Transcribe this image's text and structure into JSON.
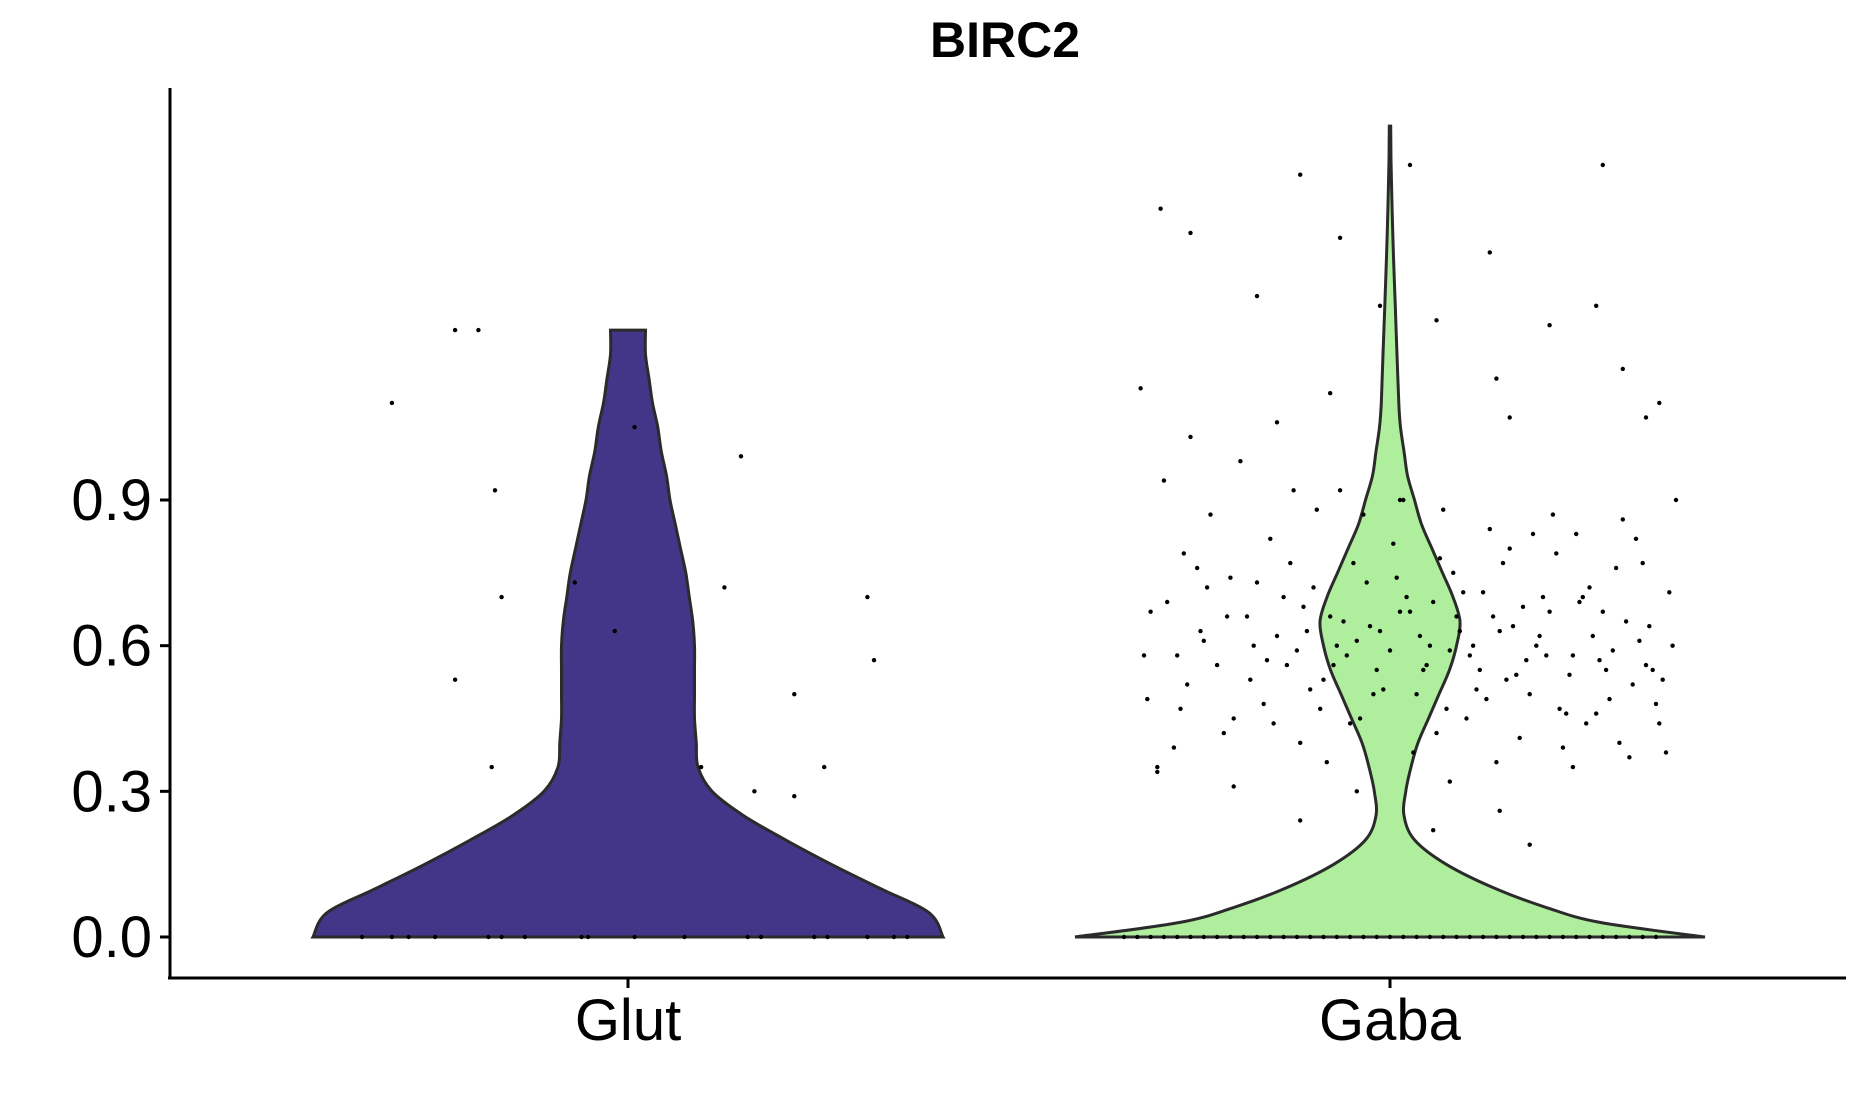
{
  "chart_data": {
    "type": "violin",
    "title": "BIRC2",
    "xlabel": "",
    "ylabel": "",
    "categories": [
      "Glut",
      "Gaba"
    ],
    "ylim": [
      -0.08,
      1.75
    ],
    "yticks": [
      0.0,
      0.3,
      0.6,
      0.9
    ],
    "ytick_labels": [
      "0.0",
      "0.3",
      "0.6",
      "0.9"
    ],
    "legend": "none",
    "grid": false,
    "colors": {
      "Glut": "#433689",
      "Gaba": "#aeee9c",
      "outline": "#2b2b2b",
      "points": "#000000"
    },
    "violins": [
      {
        "name": "Glut",
        "max": 1.25,
        "profile": [
          [
            0.0,
            0.9
          ],
          [
            0.05,
            0.86
          ],
          [
            0.1,
            0.72
          ],
          [
            0.15,
            0.58
          ],
          [
            0.2,
            0.45
          ],
          [
            0.25,
            0.33
          ],
          [
            0.3,
            0.24
          ],
          [
            0.35,
            0.2
          ],
          [
            0.4,
            0.195
          ],
          [
            0.45,
            0.19
          ],
          [
            0.5,
            0.19
          ],
          [
            0.55,
            0.19
          ],
          [
            0.6,
            0.19
          ],
          [
            0.65,
            0.185
          ],
          [
            0.7,
            0.175
          ],
          [
            0.75,
            0.165
          ],
          [
            0.8,
            0.15
          ],
          [
            0.85,
            0.135
          ],
          [
            0.9,
            0.12
          ],
          [
            0.95,
            0.11
          ],
          [
            1.0,
            0.095
          ],
          [
            1.05,
            0.085
          ],
          [
            1.1,
            0.07
          ],
          [
            1.15,
            0.06
          ],
          [
            1.2,
            0.05
          ],
          [
            1.25,
            0.05
          ]
        ],
        "points": [
          [
            -0.8,
            0.0
          ],
          [
            -0.71,
            0.0
          ],
          [
            -0.66,
            0.0
          ],
          [
            -0.58,
            0.0
          ],
          [
            -0.42,
            0.0
          ],
          [
            -0.38,
            0.0
          ],
          [
            -0.31,
            0.0
          ],
          [
            -0.14,
            0.0
          ],
          [
            -0.12,
            0.0
          ],
          [
            0.02,
            0.0
          ],
          [
            0.17,
            0.0
          ],
          [
            0.36,
            0.0
          ],
          [
            0.4,
            0.0
          ],
          [
            0.56,
            0.0
          ],
          [
            0.6,
            0.0
          ],
          [
            0.72,
            0.0
          ],
          [
            0.8,
            0.0
          ],
          [
            0.84,
            0.0
          ],
          [
            -0.52,
            1.25
          ],
          [
            -0.45,
            1.25
          ],
          [
            -0.71,
            1.1
          ],
          [
            0.02,
            1.05
          ],
          [
            0.34,
            0.99
          ],
          [
            -0.4,
            0.92
          ],
          [
            -0.16,
            0.73
          ],
          [
            0.29,
            0.72
          ],
          [
            -0.38,
            0.7
          ],
          [
            0.72,
            0.7
          ],
          [
            -0.04,
            0.63
          ],
          [
            0.74,
            0.57
          ],
          [
            -0.52,
            0.53
          ],
          [
            0.5,
            0.5
          ],
          [
            -0.41,
            0.35
          ],
          [
            0.22,
            0.35
          ],
          [
            0.59,
            0.35
          ],
          [
            0.38,
            0.3
          ],
          [
            0.5,
            0.29
          ]
        ]
      },
      {
        "name": "Gaba",
        "max": 1.67,
        "profile": [
          [
            0.0,
            0.9
          ],
          [
            0.03,
            0.6
          ],
          [
            0.06,
            0.45
          ],
          [
            0.1,
            0.3
          ],
          [
            0.15,
            0.16
          ],
          [
            0.2,
            0.07
          ],
          [
            0.25,
            0.04
          ],
          [
            0.3,
            0.045
          ],
          [
            0.35,
            0.06
          ],
          [
            0.4,
            0.08
          ],
          [
            0.45,
            0.11
          ],
          [
            0.5,
            0.14
          ],
          [
            0.55,
            0.17
          ],
          [
            0.6,
            0.19
          ],
          [
            0.65,
            0.2
          ],
          [
            0.7,
            0.18
          ],
          [
            0.75,
            0.15
          ],
          [
            0.8,
            0.12
          ],
          [
            0.85,
            0.09
          ],
          [
            0.9,
            0.07
          ],
          [
            0.95,
            0.05
          ],
          [
            1.0,
            0.04
          ],
          [
            1.05,
            0.03
          ],
          [
            1.1,
            0.025
          ],
          [
            1.2,
            0.02
          ],
          [
            1.3,
            0.015
          ],
          [
            1.4,
            0.01
          ],
          [
            1.5,
            0.006
          ],
          [
            1.6,
            0.003
          ],
          [
            1.67,
            0.002
          ]
        ],
        "points": [
          [
            -0.75,
            1.13
          ],
          [
            -0.68,
            0.94
          ],
          [
            -0.62,
            0.79
          ],
          [
            -0.55,
            0.72
          ],
          [
            -0.49,
            0.66
          ],
          [
            -0.41,
            0.6
          ],
          [
            -0.36,
            0.82
          ],
          [
            -0.31,
            0.56
          ],
          [
            -0.26,
            0.68
          ],
          [
            -0.21,
            0.47
          ],
          [
            -0.16,
            0.6
          ],
          [
            -0.11,
            0.77
          ],
          [
            -0.06,
            0.64
          ],
          [
            0.0,
            0.59
          ],
          [
            0.05,
            0.7
          ],
          [
            0.1,
            0.55
          ],
          [
            0.15,
            0.78
          ],
          [
            0.2,
            0.66
          ],
          [
            0.25,
            0.6
          ],
          [
            0.3,
            0.84
          ],
          [
            0.35,
            0.53
          ],
          [
            0.4,
            0.68
          ],
          [
            0.45,
            0.62
          ],
          [
            0.5,
            0.79
          ],
          [
            0.55,
            0.58
          ],
          [
            0.6,
            0.72
          ],
          [
            0.65,
            0.55
          ],
          [
            0.7,
            0.86
          ],
          [
            0.75,
            0.61
          ],
          [
            0.8,
            0.48
          ],
          [
            -0.74,
            0.58
          ],
          [
            -0.67,
            0.69
          ],
          [
            -0.61,
            0.52
          ],
          [
            -0.54,
            0.87
          ],
          [
            -0.47,
            0.45
          ],
          [
            -0.4,
            0.73
          ],
          [
            -0.34,
            0.62
          ],
          [
            -0.29,
            0.92
          ],
          [
            -0.24,
            0.51
          ],
          [
            -0.18,
            0.66
          ],
          [
            -0.13,
            0.58
          ],
          [
            -0.08,
            0.87
          ],
          [
            -0.03,
            0.63
          ],
          [
            0.02,
            0.74
          ],
          [
            0.08,
            0.5
          ],
          [
            0.13,
            0.69
          ],
          [
            0.18,
            0.59
          ],
          [
            0.23,
            0.45
          ],
          [
            0.28,
            0.71
          ],
          [
            0.33,
            0.63
          ],
          [
            0.38,
            0.54
          ],
          [
            0.43,
            0.83
          ],
          [
            0.48,
            0.67
          ],
          [
            0.53,
            0.46
          ],
          [
            0.58,
            0.7
          ],
          [
            0.63,
            0.57
          ],
          [
            0.68,
            0.76
          ],
          [
            0.73,
            0.52
          ],
          [
            0.78,
            0.64
          ],
          [
            0.83,
            0.38
          ],
          [
            -0.73,
            0.49
          ],
          [
            -0.65,
            0.39
          ],
          [
            -0.58,
            0.76
          ],
          [
            -0.52,
            0.56
          ],
          [
            -0.45,
            0.98
          ],
          [
            -0.38,
            0.48
          ],
          [
            -0.32,
            0.7
          ],
          [
            -0.27,
            0.4
          ],
          [
            -0.22,
            0.88
          ],
          [
            -0.17,
            0.56
          ],
          [
            -0.12,
            0.44
          ],
          [
            -0.07,
            0.73
          ],
          [
            -0.02,
            0.51
          ],
          [
            0.04,
            0.9
          ],
          [
            0.09,
            0.62
          ],
          [
            0.14,
            0.42
          ],
          [
            0.19,
            0.75
          ],
          [
            0.24,
            0.58
          ],
          [
            0.29,
            0.49
          ],
          [
            0.34,
            0.77
          ],
          [
            0.39,
            0.41
          ],
          [
            0.44,
            0.6
          ],
          [
            0.49,
            0.87
          ],
          [
            0.54,
            0.54
          ],
          [
            0.59,
            0.44
          ],
          [
            0.64,
            0.67
          ],
          [
            0.69,
            0.4
          ],
          [
            0.74,
            0.82
          ],
          [
            0.79,
            0.55
          ],
          [
            0.84,
            0.71
          ],
          [
            -0.72,
            0.67
          ],
          [
            -0.64,
            0.58
          ],
          [
            -0.57,
            0.63
          ],
          [
            -0.5,
            0.42
          ],
          [
            -0.43,
            0.66
          ],
          [
            -0.37,
            0.57
          ],
          [
            -0.3,
            0.77
          ],
          [
            -0.25,
            0.63
          ],
          [
            -0.2,
            0.53
          ],
          [
            -0.15,
            0.92
          ],
          [
            -0.1,
            0.61
          ],
          [
            -0.05,
            0.5
          ],
          [
            0.01,
            0.81
          ],
          [
            0.06,
            0.67
          ],
          [
            0.11,
            0.56
          ],
          [
            0.16,
            0.88
          ],
          [
            0.21,
            0.63
          ],
          [
            0.26,
            0.51
          ],
          [
            0.31,
            0.66
          ],
          [
            0.36,
            0.8
          ],
          [
            0.41,
            0.57
          ],
          [
            0.46,
            0.7
          ],
          [
            0.51,
            0.47
          ],
          [
            0.56,
            0.83
          ],
          [
            0.61,
            0.62
          ],
          [
            0.66,
            0.49
          ],
          [
            0.71,
            0.65
          ],
          [
            0.76,
            0.77
          ],
          [
            0.81,
            0.44
          ],
          [
            0.85,
            0.6
          ],
          [
            -0.7,
            0.34
          ],
          [
            -0.63,
            0.47
          ],
          [
            -0.56,
            0.61
          ],
          [
            -0.48,
            0.74
          ],
          [
            -0.42,
            0.53
          ],
          [
            -0.35,
            0.44
          ],
          [
            -0.28,
            0.59
          ],
          [
            -0.23,
            0.72
          ],
          [
            -0.19,
            0.36
          ],
          [
            -0.14,
            0.65
          ],
          [
            -0.09,
            0.45
          ],
          [
            -0.04,
            0.55
          ],
          [
            0.03,
            0.67
          ],
          [
            0.07,
            0.38
          ],
          [
            0.12,
            0.6
          ],
          [
            0.17,
            0.47
          ],
          [
            0.22,
            0.71
          ],
          [
            0.27,
            0.55
          ],
          [
            0.32,
            0.36
          ],
          [
            0.37,
            0.64
          ],
          [
            0.42,
            0.5
          ],
          [
            0.47,
            0.58
          ],
          [
            0.52,
            0.39
          ],
          [
            0.57,
            0.69
          ],
          [
            0.62,
            0.46
          ],
          [
            0.67,
            0.59
          ],
          [
            0.72,
            0.37
          ],
          [
            0.77,
            0.56
          ],
          [
            0.82,
            0.53
          ],
          [
            0.86,
            0.9
          ],
          [
            -0.69,
            1.5
          ],
          [
            -0.6,
            1.45
          ],
          [
            -0.4,
            1.32
          ],
          [
            -0.27,
            1.57
          ],
          [
            -0.15,
            1.44
          ],
          [
            -0.03,
            1.3
          ],
          [
            0.06,
            1.59
          ],
          [
            0.14,
            1.27
          ],
          [
            0.3,
            1.41
          ],
          [
            0.32,
            1.15
          ],
          [
            0.48,
            1.26
          ],
          [
            0.64,
            1.59
          ],
          [
            0.7,
            1.17
          ],
          [
            0.62,
            1.3
          ],
          [
            0.77,
            1.07
          ],
          [
            0.36,
            1.07
          ],
          [
            -0.6,
            1.03
          ],
          [
            -0.34,
            1.06
          ],
          [
            -0.18,
            1.12
          ],
          [
            0.03,
            0.9
          ],
          [
            0.13,
            0.22
          ],
          [
            0.42,
            0.19
          ],
          [
            0.18,
            0.32
          ],
          [
            -0.1,
            0.3
          ],
          [
            -0.27,
            0.24
          ],
          [
            -0.47,
            0.31
          ],
          [
            0.33,
            0.26
          ],
          [
            0.55,
            0.35
          ],
          [
            -0.7,
            0.35
          ],
          [
            0.81,
            1.1
          ],
          [
            -0.8,
            0.0
          ],
          [
            -0.76,
            0.0
          ],
          [
            -0.72,
            0.0
          ],
          [
            -0.68,
            0.0
          ],
          [
            -0.64,
            0.0
          ],
          [
            -0.6,
            0.0
          ],
          [
            -0.56,
            0.0
          ],
          [
            -0.52,
            0.0
          ],
          [
            -0.48,
            0.0
          ],
          [
            -0.44,
            0.0
          ],
          [
            -0.4,
            0.0
          ],
          [
            -0.36,
            0.0
          ],
          [
            -0.32,
            0.0
          ],
          [
            -0.28,
            0.0
          ],
          [
            -0.24,
            0.0
          ],
          [
            -0.2,
            0.0
          ],
          [
            -0.16,
            0.0
          ],
          [
            -0.12,
            0.0
          ],
          [
            -0.08,
            0.0
          ],
          [
            -0.04,
            0.0
          ],
          [
            0.0,
            0.0
          ],
          [
            0.04,
            0.0
          ],
          [
            0.08,
            0.0
          ],
          [
            0.12,
            0.0
          ],
          [
            0.16,
            0.0
          ],
          [
            0.2,
            0.0
          ],
          [
            0.24,
            0.0
          ],
          [
            0.28,
            0.0
          ],
          [
            0.32,
            0.0
          ],
          [
            0.36,
            0.0
          ],
          [
            0.4,
            0.0
          ],
          [
            0.44,
            0.0
          ],
          [
            0.48,
            0.0
          ],
          [
            0.52,
            0.0
          ],
          [
            0.56,
            0.0
          ],
          [
            0.6,
            0.0
          ],
          [
            0.64,
            0.0
          ],
          [
            0.68,
            0.0
          ],
          [
            0.72,
            0.0
          ],
          [
            0.76,
            0.0
          ],
          [
            0.8,
            0.0
          ]
        ]
      }
    ]
  }
}
